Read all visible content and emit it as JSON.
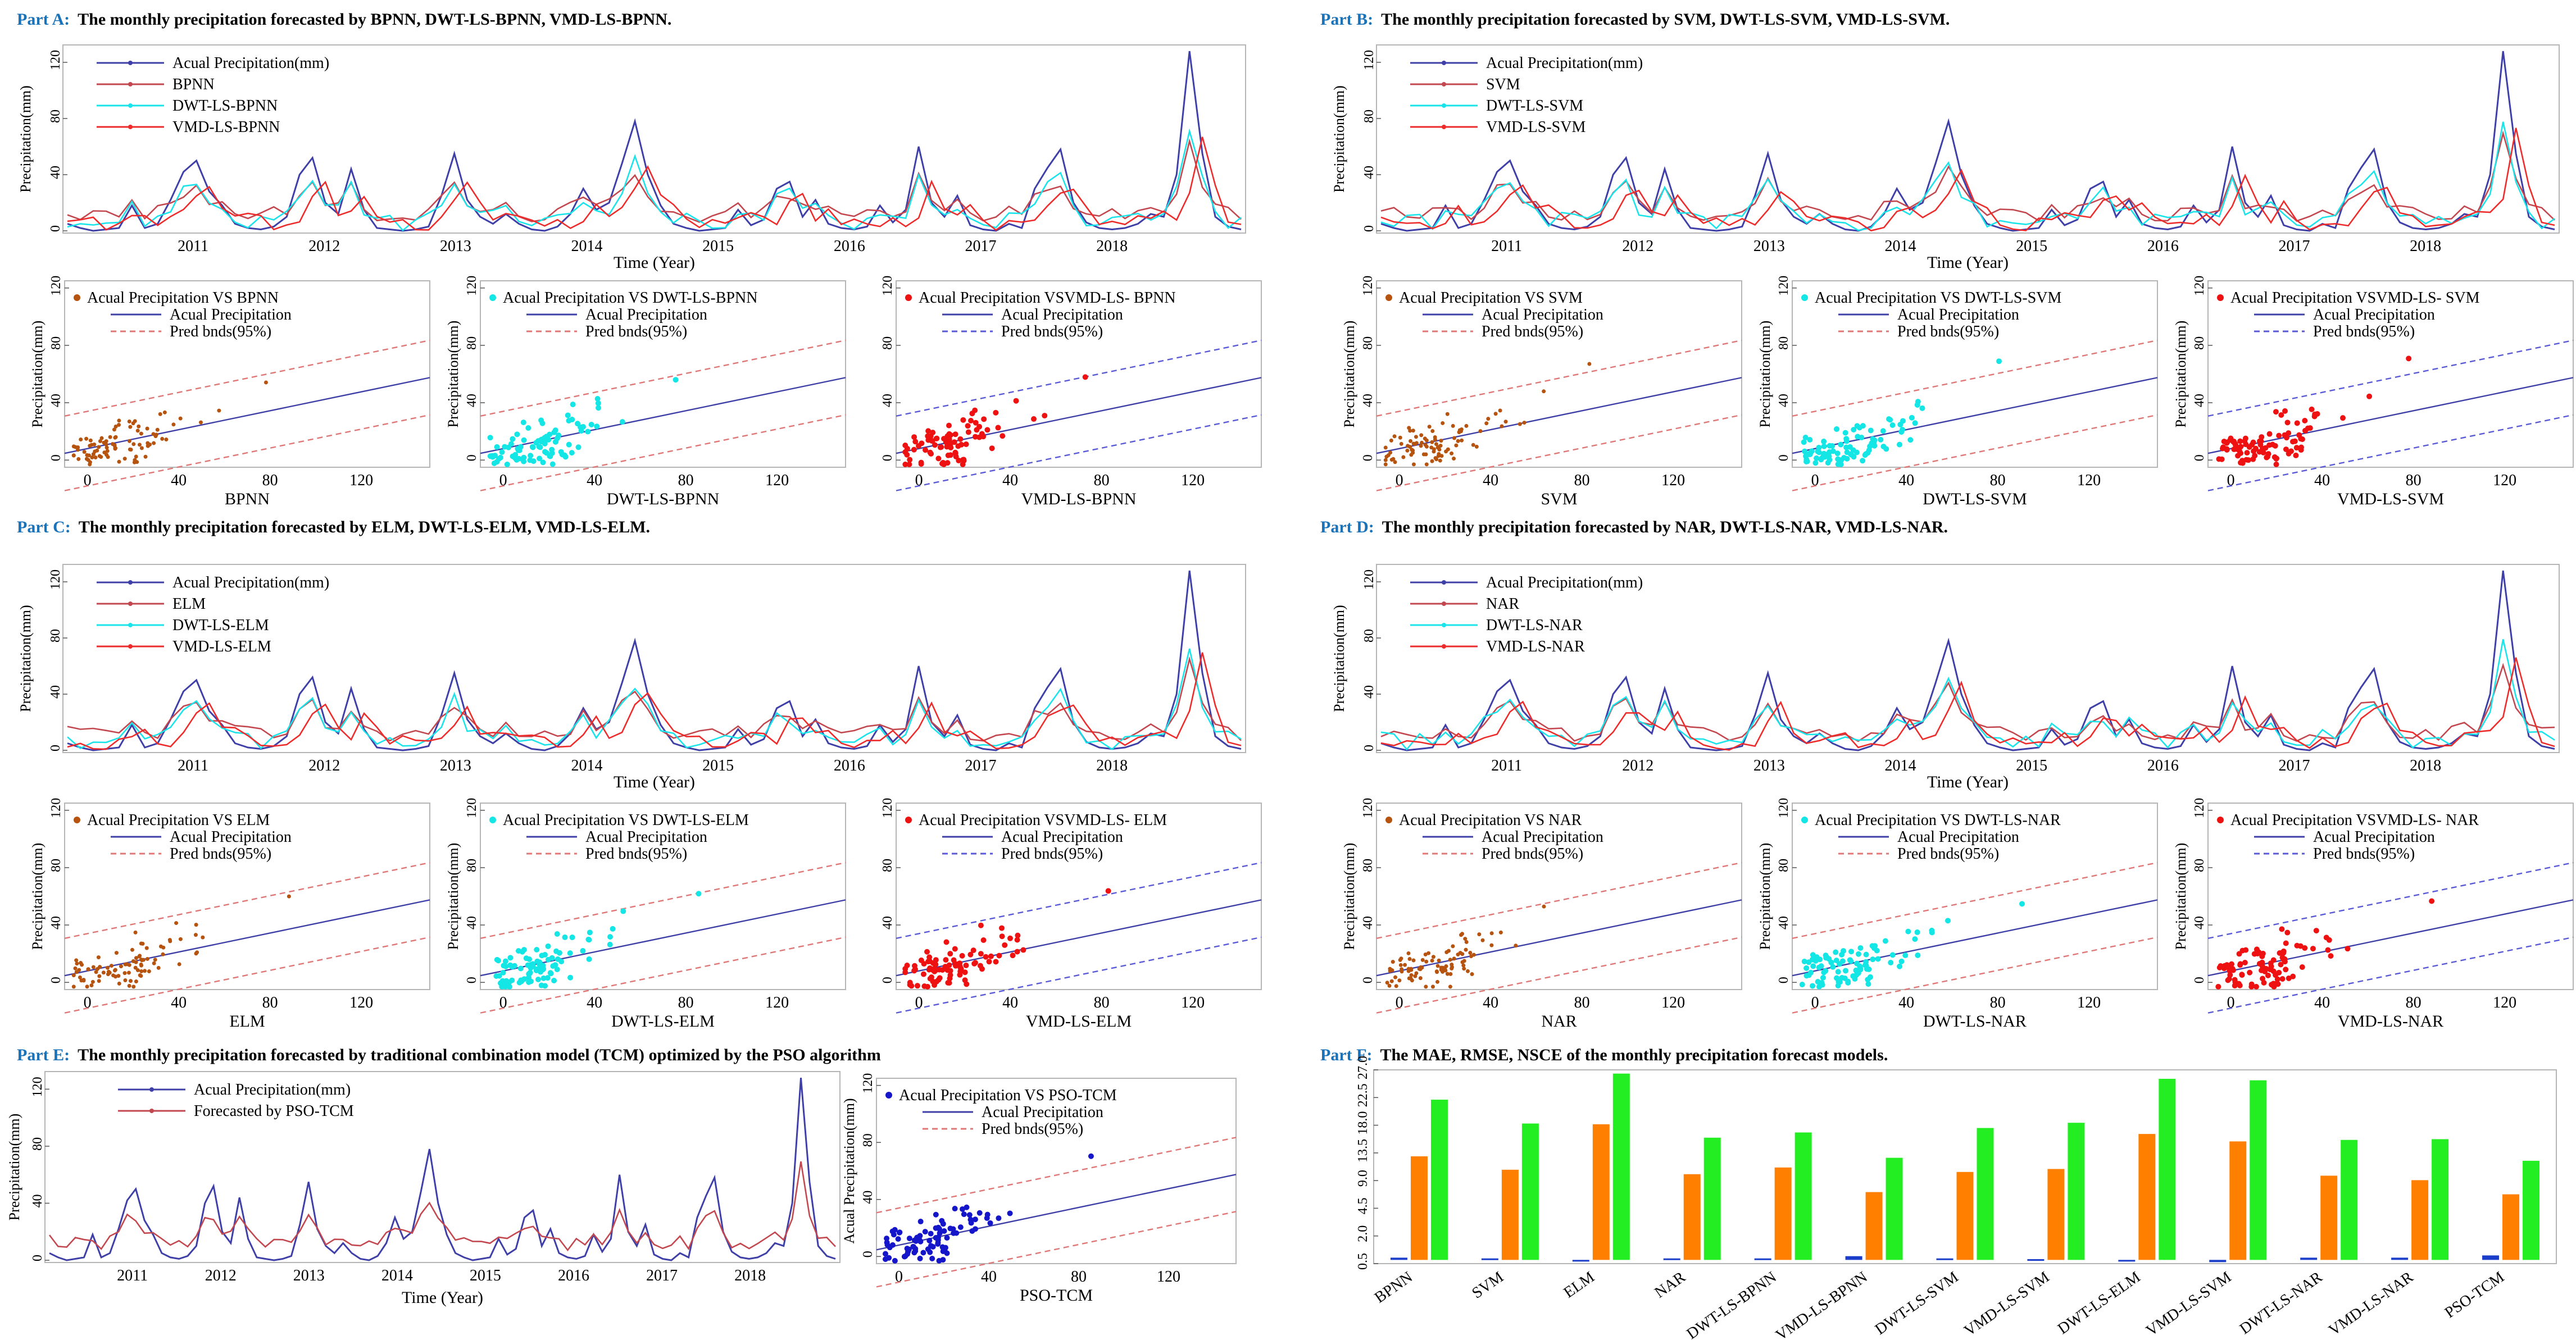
{
  "colors": {
    "actual": "#3f3fa8",
    "model": "#c2474f",
    "dwt": "#18e4ea",
    "vmd": "#ee2b2b",
    "scatter_model": "#b5530f",
    "scatter_dwt": "#14e6e6",
    "scatter_vmd": "#ee1111",
    "scatter_pso": "#1515c9",
    "bnd_red": "#e07777",
    "bnd_blue": "#5a5ad6",
    "mae": "#1a3ec9",
    "rmse": "#ff8000",
    "nsce": "#22ee22",
    "part_letter": "#1a73b8"
  },
  "years": [
    "2011",
    "2012",
    "2013",
    "2014",
    "2015",
    "2016",
    "2017",
    "2018"
  ],
  "actual_series": [
    5,
    2,
    0,
    1,
    2,
    18,
    2,
    5,
    22,
    42,
    50,
    28,
    18,
    5,
    2,
    1,
    3,
    10,
    40,
    52,
    20,
    12,
    44,
    15,
    2,
    1,
    0,
    1,
    3,
    25,
    55,
    22,
    10,
    5,
    12,
    5,
    1,
    0,
    3,
    12,
    30,
    15,
    20,
    48,
    78,
    40,
    18,
    5,
    2,
    0,
    1,
    2,
    15,
    4,
    8,
    30,
    35,
    10,
    22,
    5,
    2,
    1,
    3,
    18,
    6,
    15,
    60,
    20,
    10,
    25,
    4,
    1,
    0,
    5,
    2,
    30,
    45,
    58,
    20,
    6,
    2,
    1,
    2,
    5,
    12,
    10,
    40,
    128,
    55,
    10,
    3,
    1
  ],
  "ts_yticks": [
    "0",
    "40",
    "80",
    "120"
  ],
  "scatter_xticks": [
    "0",
    "40",
    "80",
    "120"
  ],
  "scatter_yticks": [
    "0",
    "40",
    "80",
    "120"
  ],
  "parts": [
    {
      "letter": "Part A:",
      "title": "The monthly precipitation forecasted by BPNN, DWT-LS-BPNN, VMD-LS-BPNN.",
      "ts_ylabel": "Precipitation(mm)",
      "ts_xlabel": "Time (Year)",
      "ts_legend": [
        "Acual Precipitation(mm)",
        "BPNN",
        "DWT-LS-BPNN",
        "VMD-LS-BPNN"
      ],
      "scatters": [
        {
          "legend": [
            "Acual Precipitation VS BPNN",
            "Acual Precipitation",
            "Pred bnds(95%)"
          ],
          "xlabel": "BPNN",
          "ylabel": "Precipitation(mm)",
          "kind": "model"
        },
        {
          "legend": [
            "Acual Precipitation VS DWT-LS-BPNN",
            "Acual Precipitation",
            "Pred bnds(95%)"
          ],
          "xlabel": "DWT-LS-BPNN",
          "ylabel": "Precipitation(mm)",
          "kind": "dwt"
        },
        {
          "legend": [
            "Acual Precipitation VSVMD-LS- BPNN",
            "Acual Precipitation",
            "Pred bnds(95%)"
          ],
          "xlabel": "VMD-LS-BPNN",
          "ylabel": "",
          "kind": "vmd"
        }
      ]
    },
    {
      "letter": "Part B:",
      "title": "The monthly precipitation forecasted by SVM, DWT-LS-SVM, VMD-LS-SVM.",
      "ts_ylabel": "Precipitation(mm)",
      "ts_xlabel": "Time (Year)",
      "ts_legend": [
        "Acual Precipitation(mm)",
        "SVM",
        "DWT-LS-SVM",
        "VMD-LS-SVM"
      ],
      "scatters": [
        {
          "legend": [
            "Acual Precipitation VS SVM",
            "Acual Precipitation",
            "Pred bnds(95%)"
          ],
          "xlabel": "SVM",
          "ylabel": "Precipitation(mm)",
          "kind": "model"
        },
        {
          "legend": [
            "Acual Precipitation VS DWT-LS-SVM",
            "Acual Precipitation",
            "Pred bnds(95%)"
          ],
          "xlabel": "DWT-LS-SVM",
          "ylabel": "Precipitation(mm)",
          "kind": "dwt"
        },
        {
          "legend": [
            "Acual Precipitation VSVMD-LS- SVM",
            "Acual Precipitation",
            "Pred bnds(95%)"
          ],
          "xlabel": "VMD-LS-SVM",
          "ylabel": "Precipitation(mm)",
          "kind": "vmd"
        }
      ]
    },
    {
      "letter": "Part C:",
      "title": "The monthly precipitation forecasted by ELM, DWT-LS-ELM, VMD-LS-ELM.",
      "ts_ylabel": "Precipitation(mm)",
      "ts_xlabel": "Time (Year)",
      "ts_legend": [
        "Acual Precipitation(mm)",
        "ELM",
        "DWT-LS-ELM",
        "VMD-LS-ELM"
      ],
      "scatters": [
        {
          "legend": [
            "Acual Precipitation VS ELM",
            "Acual Precipitation",
            "Pred bnds(95%)"
          ],
          "xlabel": "ELM",
          "ylabel": "Precipitation(mm)",
          "kind": "model"
        },
        {
          "legend": [
            "Acual Precipitation VS DWT-LS-ELM",
            "Acual Precipitation",
            "Pred bnds(95%)"
          ],
          "xlabel": "DWT-LS-ELM",
          "ylabel": "Precipitation(mm)",
          "kind": "dwt"
        },
        {
          "legend": [
            "Acual Precipitation VSVMD-LS- ELM",
            "Acual Precipitation",
            "Pred bnds(95%)"
          ],
          "xlabel": "VMD-LS-ELM",
          "ylabel": "",
          "kind": "vmd"
        }
      ]
    },
    {
      "letter": "Part D:",
      "title": "The monthly precipitation forecasted by NAR, DWT-LS-NAR, VMD-LS-NAR.",
      "ts_ylabel": "Precipitation(mm)",
      "ts_xlabel": "Time (Year)",
      "ts_legend": [
        "Acual Precipitation(mm)",
        "NAR",
        "DWT-LS-NAR",
        "VMD-LS-NAR"
      ],
      "scatters": [
        {
          "legend": [
            "Acual Precipitation VS NAR",
            "Acual Precipitation",
            "Pred bnds(95%)"
          ],
          "xlabel": "NAR",
          "ylabel": "Precipitation(mm)",
          "kind": "model"
        },
        {
          "legend": [
            "Acual Precipitation VS DWT-LS-NAR",
            "Acual Precipitation",
            "Pred bnds(95%)"
          ],
          "xlabel": "DWT-LS-NAR",
          "ylabel": "Precipitation(mm)",
          "kind": "dwt"
        },
        {
          "legend": [
            "Acual Precipitation VSVMD-LS- NAR",
            "Acual Precipitation",
            "Pred bnds(95%)"
          ],
          "xlabel": "VMD-LS-NAR",
          "ylabel": "Precipitation(mm)",
          "kind": "vmd"
        }
      ]
    }
  ],
  "part_e": {
    "letter": "Part E:",
    "title": "The monthly precipitation forecasted by  traditional combination model (TCM) optimized by the PSO algorithm",
    "ts_ylabel": "Precipitation(mm)",
    "ts_xlabel": "Time (Year)",
    "ts_legend": [
      "Acual Precipitation(mm)",
      "Forecasted by PSO-TCM"
    ],
    "scatter": {
      "legend": [
        "Acual Precipitation VS PSO-TCM",
        "Acual Precipitation",
        "Pred bnds(95%)"
      ],
      "xlabel": "PSO-TCM",
      "ylabel": "Acual Precipitation(mm)"
    }
  },
  "part_f": {
    "letter": "Part F:",
    "title": "The MAE, RMSE, NSCE of the monthly precipitation forecast models."
  },
  "chart_data": {
    "type": "bar",
    "title": "The MAE, RMSE, NSCE of the monthly precipitation forecast models.",
    "categories": [
      "BPNN",
      "SVM",
      "ELM",
      "NAR",
      "DWT-LS-BPNN",
      "VMD-LS-BPNN",
      "DWT-LS-SVM",
      "VMD-LS-SVM",
      "DWT-LS-ELM",
      "VMD-LS-SVM",
      "DWT-LS-NAR",
      "VMD-LS-NAR",
      "PSO-TCM"
    ],
    "series": [
      {
        "name": "MAE",
        "values": [
          0.3,
          0.2,
          -0.1,
          0.2,
          0.2,
          0.5,
          0.2,
          0.1,
          -0.2,
          -0.3,
          0.3,
          0.3,
          0.6
        ]
      },
      {
        "name": "RMSE",
        "values": [
          13.9,
          12.1,
          18.2,
          11.5,
          12.4,
          9.1,
          11.8,
          12.2,
          16.9,
          15.9,
          11.3,
          10.7,
          8.8
        ]
      },
      {
        "name": "NSCE",
        "values": [
          21.5,
          18.3,
          25.0,
          16.4,
          17.1,
          13.7,
          17.7,
          18.4,
          24.3,
          24.1,
          16.1,
          16.2,
          13.3
        ]
      }
    ],
    "yticks": [
      "0.5",
      "2.0",
      "4.5",
      "9.0",
      "13.5",
      "18.0",
      "22.5",
      "27.0"
    ],
    "ylim": [
      -0.5,
      25.5
    ],
    "xlabel": "",
    "ylabel": ""
  }
}
